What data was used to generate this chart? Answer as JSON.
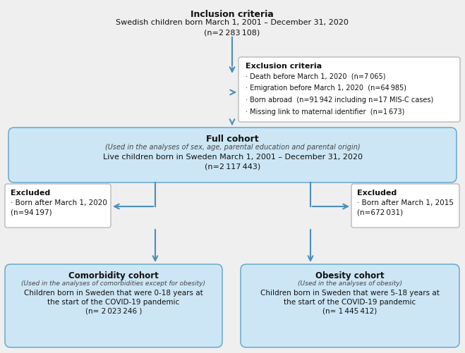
{
  "bg_color": "#efefef",
  "box_blue_light": "#cde6f5",
  "box_blue_border": "#5ba3c9",
  "box_white_border": "#aaaaaa",
  "arrow_color": "#4a90b8",
  "text_dark": "#111111",
  "text_gray": "#444444",
  "inclusion_title": "Inclusion criteria",
  "inclusion_line2": "Swedish children born March 1, 2001 – December 31, 2020",
  "inclusion_line3": "(n=2 283 108)",
  "exclusion_title": "Exclusion criteria",
  "exclusion_bullets": [
    "· Death before March 1, 2020  (n=7 065)",
    "· Emigration before March 1, 2020  (n=64 985)",
    "· Born abroad  (n=91 942 including n=17 MIS-C cases)",
    "· Missing link to maternal identifier  (n=1 673)"
  ],
  "full_cohort_title": "Full cohort",
  "full_cohort_sub": "(Used in the analyses of sex, age, parental education and parental origin)",
  "full_cohort_line2": "Live children born in Sweden March 1, 2001 – December 31, 2020",
  "full_cohort_line3": "(n=2 117 443)",
  "excl_left_title": "Excluded",
  "excl_left_line2": "· Born after March 1, 2020",
  "excl_left_line3": "(n=94 197)",
  "excl_right_title": "Excluded",
  "excl_right_line2": "· Born after March 1, 2015",
  "excl_right_line3": "(n=672 031)",
  "comorbidity_title": "Comorbidity cohort",
  "comorbidity_sub": "(Used in the analyses of comorbidities except for obesity)",
  "comorbidity_line2": "Children born in Sweden that were 0-18 years at",
  "comorbidity_line3": "the start of the COVID-19 pandemic",
  "comorbidity_line4": "(n= 2 023 246 )",
  "obesity_title": "Obesity cohort",
  "obesity_sub": "(Used in the analyses of obesity)",
  "obesity_line2": "Children born in Sweden that were 5-18 years at",
  "obesity_line3": "the start of the COVID-19 pandemic",
  "obesity_line4": "(n= 1 445 412)"
}
